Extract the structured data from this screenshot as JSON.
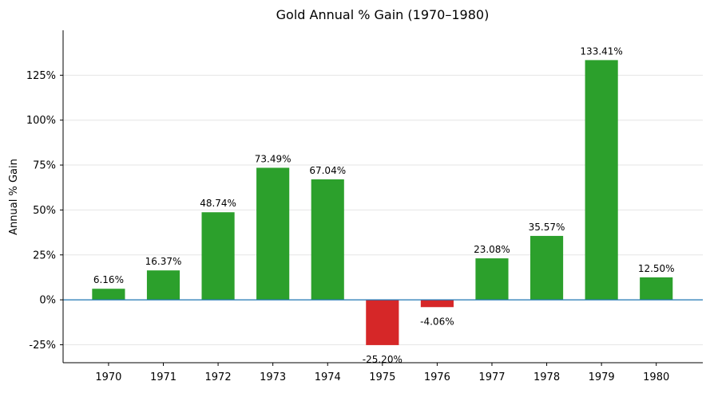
{
  "chart_data": {
    "type": "bar",
    "title": "Gold Annual % Gain (1970–1980)",
    "xlabel": "",
    "ylabel": "Annual % Gain",
    "categories": [
      "1970",
      "1971",
      "1972",
      "1973",
      "1974",
      "1975",
      "1976",
      "1977",
      "1978",
      "1979",
      "1980"
    ],
    "values": [
      6.16,
      16.37,
      48.74,
      73.49,
      67.04,
      -25.2,
      -4.06,
      23.08,
      35.57,
      133.41,
      12.5
    ],
    "data_labels": [
      "6.16%",
      "16.37%",
      "48.74%",
      "73.49%",
      "67.04%",
      "-25.20%",
      "-4.06%",
      "23.08%",
      "35.57%",
      "133.41%",
      "12.50%"
    ],
    "ylim": [
      -35,
      150
    ],
    "yticks": [
      -25,
      0,
      25,
      50,
      75,
      100,
      125
    ],
    "ytick_labels": [
      "-25%",
      "0%",
      "25%",
      "50%",
      "75%",
      "100%",
      "125%"
    ],
    "grid": "horizontal",
    "colors": {
      "positive": "#2ca02c",
      "negative": "#d62728",
      "zero_line": "#1f77b4",
      "grid": "#e6e6e6"
    }
  }
}
